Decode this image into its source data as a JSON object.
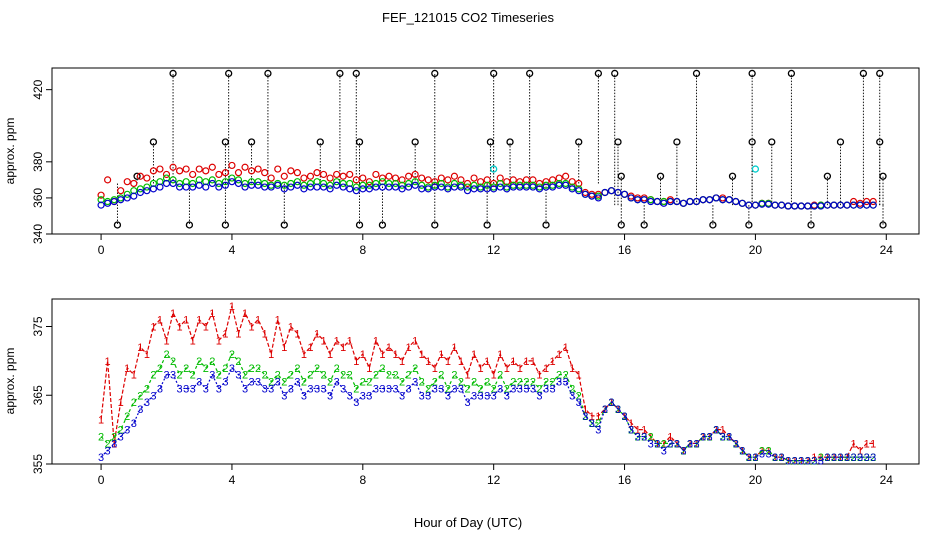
{
  "title": "FEF_121015  CO2 Timeseries",
  "xlabel": "Hour of Day (UTC)",
  "colors": {
    "series1": "#dd0000",
    "series2": "#00bb00",
    "series3": "#0000cc",
    "outlier": "#000000",
    "cyan": "#00cccc"
  },
  "chart_data": [
    {
      "type": "scatter",
      "ylabel": "approx. ppm",
      "xlim": [
        -1.5,
        25
      ],
      "ylim": [
        340,
        432
      ],
      "xticks": [
        0,
        4,
        8,
        12,
        16,
        20,
        24
      ],
      "yticks": [
        340,
        360,
        380,
        420
      ],
      "outlier_spikes": [
        {
          "x": 2.2,
          "y": 429
        },
        {
          "x": 3.9,
          "y": 429
        },
        {
          "x": 5.1,
          "y": 429
        },
        {
          "x": 7.3,
          "y": 429
        },
        {
          "x": 7.8,
          "y": 429
        },
        {
          "x": 10.2,
          "y": 429
        },
        {
          "x": 12.0,
          "y": 429
        },
        {
          "x": 13.1,
          "y": 429
        },
        {
          "x": 15.2,
          "y": 429
        },
        {
          "x": 15.7,
          "y": 429
        },
        {
          "x": 18.2,
          "y": 429
        },
        {
          "x": 19.9,
          "y": 429
        },
        {
          "x": 21.1,
          "y": 429
        },
        {
          "x": 23.3,
          "y": 429
        },
        {
          "x": 23.8,
          "y": 429
        },
        {
          "x": 1.6,
          "y": 391
        },
        {
          "x": 3.8,
          "y": 391
        },
        {
          "x": 4.6,
          "y": 391
        },
        {
          "x": 6.7,
          "y": 391
        },
        {
          "x": 7.9,
          "y": 391
        },
        {
          "x": 9.6,
          "y": 391
        },
        {
          "x": 11.9,
          "y": 391
        },
        {
          "x": 12.5,
          "y": 391
        },
        {
          "x": 14.6,
          "y": 391
        },
        {
          "x": 15.8,
          "y": 391
        },
        {
          "x": 17.6,
          "y": 391
        },
        {
          "x": 19.9,
          "y": 391
        },
        {
          "x": 20.5,
          "y": 391
        },
        {
          "x": 22.6,
          "y": 391
        },
        {
          "x": 23.8,
          "y": 391
        },
        {
          "x": 0.5,
          "y": 345
        },
        {
          "x": 2.7,
          "y": 345
        },
        {
          "x": 3.8,
          "y": 345
        },
        {
          "x": 5.6,
          "y": 345
        },
        {
          "x": 7.9,
          "y": 345
        },
        {
          "x": 8.6,
          "y": 345
        },
        {
          "x": 10.2,
          "y": 345
        },
        {
          "x": 11.8,
          "y": 345
        },
        {
          "x": 13.6,
          "y": 345
        },
        {
          "x": 15.9,
          "y": 345
        },
        {
          "x": 16.6,
          "y": 345
        },
        {
          "x": 18.7,
          "y": 345
        },
        {
          "x": 19.8,
          "y": 345
        },
        {
          "x": 21.7,
          "y": 345
        },
        {
          "x": 23.9,
          "y": 345
        },
        {
          "x": 1.1,
          "y": 372
        },
        {
          "x": 15.9,
          "y": 372
        },
        {
          "x": 17.1,
          "y": 372
        },
        {
          "x": 19.3,
          "y": 372
        },
        {
          "x": 22.2,
          "y": 372
        },
        {
          "x": 23.9,
          "y": 372
        }
      ],
      "cyan_points": [
        {
          "x": 12.0,
          "y": 376
        },
        {
          "x": 20.0,
          "y": 376
        }
      ]
    },
    {
      "type": "line",
      "ylabel": "approx. ppm",
      "xlim": [
        -1.5,
        25
      ],
      "ylim": [
        355,
        379
      ],
      "xticks": [
        0,
        4,
        8,
        12,
        16,
        20,
        24
      ],
      "yticks": [
        355,
        365,
        375
      ],
      "series": [
        {
          "marker": "1",
          "x": [
            0.0,
            0.2,
            0.4,
            0.6,
            0.8,
            1.0,
            1.2,
            1.4,
            1.6,
            1.8,
            2.0,
            2.2,
            2.4,
            2.6,
            2.8,
            3.0,
            3.2,
            3.4,
            3.6,
            3.8,
            4.0,
            4.2,
            4.4,
            4.6,
            4.8,
            5.0,
            5.2,
            5.4,
            5.6,
            5.8,
            6.0,
            6.2,
            6.4,
            6.6,
            6.8,
            7.0,
            7.2,
            7.4,
            7.6,
            7.8,
            8.0,
            8.2,
            8.4,
            8.6,
            8.8,
            9.0,
            9.2,
            9.4,
            9.6,
            9.8,
            10.0,
            10.2,
            10.4,
            10.6,
            10.8,
            11.0,
            11.2,
            11.4,
            11.6,
            11.8,
            12.0,
            12.2,
            12.4,
            12.6,
            12.8,
            13.0,
            13.2,
            13.4,
            13.6,
            13.8,
            14.0,
            14.2,
            14.4,
            14.6,
            14.8,
            15.0,
            15.2,
            15.4,
            15.6,
            15.8,
            16.0,
            16.2,
            16.4,
            16.6,
            16.8,
            17.0,
            17.2,
            17.4,
            17.6,
            17.8,
            18.0,
            18.2,
            18.4,
            18.6,
            18.8,
            19.0,
            19.2,
            19.4,
            19.6,
            19.8,
            20.0,
            20.2,
            20.4,
            20.6,
            20.8,
            21.0,
            21.2,
            21.4,
            21.6,
            21.8,
            22.0,
            22.2,
            22.4,
            22.6,
            22.8,
            23.0,
            23.2,
            23.4,
            23.6
          ],
          "values": [
            361.5,
            370,
            358,
            364,
            369,
            368,
            372,
            371,
            375,
            376,
            373,
            377,
            375,
            376,
            373,
            376,
            375,
            377,
            373,
            374,
            378,
            374,
            377,
            375,
            376,
            374,
            371,
            376,
            372,
            375,
            374,
            371,
            372,
            374,
            373,
            371,
            373,
            372,
            373,
            370,
            371,
            369,
            373,
            371,
            372,
            371,
            370,
            372,
            373,
            371,
            370,
            369,
            371,
            370,
            372,
            370,
            368,
            371,
            369,
            370,
            368,
            371,
            369,
            370,
            369,
            370,
            370,
            368,
            369,
            370,
            371,
            372,
            369,
            368,
            363,
            362,
            362,
            363,
            364,
            363,
            362,
            361,
            360,
            360,
            359,
            358,
            358,
            359,
            358,
            357,
            358,
            358,
            359,
            359,
            360,
            360,
            359,
            358,
            357,
            356,
            356,
            357,
            357,
            356,
            356,
            355.5,
            355.5,
            355.5,
            355.5,
            356,
            356,
            356,
            356,
            356,
            356,
            358,
            357,
            358,
            358
          ]
        },
        {
          "marker": "2",
          "x": [
            0.0,
            0.2,
            0.4,
            0.6,
            0.8,
            1.0,
            1.2,
            1.4,
            1.6,
            1.8,
            2.0,
            2.2,
            2.4,
            2.6,
            2.8,
            3.0,
            3.2,
            3.4,
            3.6,
            3.8,
            4.0,
            4.2,
            4.4,
            4.6,
            4.8,
            5.0,
            5.2,
            5.4,
            5.6,
            5.8,
            6.0,
            6.2,
            6.4,
            6.6,
            6.8,
            7.0,
            7.2,
            7.4,
            7.6,
            7.8,
            8.0,
            8.2,
            8.4,
            8.6,
            8.8,
            9.0,
            9.2,
            9.4,
            9.6,
            9.8,
            10.0,
            10.2,
            10.4,
            10.6,
            10.8,
            11.0,
            11.2,
            11.4,
            11.6,
            11.8,
            12.0,
            12.2,
            12.4,
            12.6,
            12.8,
            13.0,
            13.2,
            13.4,
            13.6,
            13.8,
            14.0,
            14.2,
            14.4,
            14.6,
            14.8,
            15.0,
            15.2,
            15.4,
            15.6,
            15.8,
            16.0,
            16.2,
            16.4,
            16.6,
            16.8,
            17.0,
            17.2,
            17.4,
            17.6,
            17.8,
            18.0,
            18.2,
            18.4,
            18.6,
            18.8,
            19.0,
            19.2,
            19.4,
            19.6,
            19.8,
            20.0,
            20.2,
            20.4,
            20.6,
            20.8,
            21.0,
            21.2,
            21.4,
            21.6,
            21.8,
            22.0,
            22.2,
            22.4,
            22.6,
            22.8,
            23.0,
            23.2,
            23.4,
            23.6
          ],
          "values": [
            359,
            358,
            359,
            360,
            362,
            364,
            365,
            366,
            368,
            369,
            371,
            370,
            368,
            369,
            368,
            370,
            369,
            370,
            368,
            369,
            371,
            370,
            368,
            369,
            369,
            368,
            367,
            368,
            367,
            368,
            369,
            367,
            368,
            369,
            368,
            367,
            369,
            368,
            368,
            366,
            367,
            367,
            368,
            369,
            368,
            368,
            367,
            368,
            369,
            367,
            366,
            367,
            368,
            366,
            368,
            367,
            366,
            367,
            366,
            367,
            366,
            368,
            366,
            367,
            367,
            367,
            367,
            366,
            367,
            367,
            368,
            368,
            366,
            365,
            362,
            361,
            361,
            363,
            364,
            363,
            362,
            360,
            359,
            359,
            359,
            358,
            358,
            358,
            358,
            357,
            358,
            358,
            359,
            359,
            360,
            359,
            359,
            358,
            357,
            356,
            356,
            357,
            357,
            356,
            356,
            355.5,
            355.5,
            355.5,
            355.5,
            355.5,
            356,
            356,
            356,
            356,
            356,
            356,
            356,
            356,
            356
          ]
        },
        {
          "marker": "3",
          "x": [
            0.0,
            0.2,
            0.4,
            0.6,
            0.8,
            1.0,
            1.2,
            1.4,
            1.6,
            1.8,
            2.0,
            2.2,
            2.4,
            2.6,
            2.8,
            3.0,
            3.2,
            3.4,
            3.6,
            3.8,
            4.0,
            4.2,
            4.4,
            4.6,
            4.8,
            5.0,
            5.2,
            5.4,
            5.6,
            5.8,
            6.0,
            6.2,
            6.4,
            6.6,
            6.8,
            7.0,
            7.2,
            7.4,
            7.6,
            7.8,
            8.0,
            8.2,
            8.4,
            8.6,
            8.8,
            9.0,
            9.2,
            9.4,
            9.6,
            9.8,
            10.0,
            10.2,
            10.4,
            10.6,
            10.8,
            11.0,
            11.2,
            11.4,
            11.6,
            11.8,
            12.0,
            12.2,
            12.4,
            12.6,
            12.8,
            13.0,
            13.2,
            13.4,
            13.6,
            13.8,
            14.0,
            14.2,
            14.4,
            14.6,
            14.8,
            15.0,
            15.2,
            15.4,
            15.6,
            15.8,
            16.0,
            16.2,
            16.4,
            16.6,
            16.8,
            17.0,
            17.2,
            17.4,
            17.6,
            17.8,
            18.0,
            18.2,
            18.4,
            18.6,
            18.8,
            19.0,
            19.2,
            19.4,
            19.6,
            19.8,
            20.0,
            20.2,
            20.4,
            20.6,
            20.8,
            21.0,
            21.2,
            21.4,
            21.6,
            21.8,
            22.0,
            22.2,
            22.4,
            22.6,
            22.8,
            23.0,
            23.2,
            23.4,
            23.6
          ],
          "values": [
            356,
            357,
            358,
            359,
            360,
            361,
            363,
            364,
            365,
            366,
            368,
            368,
            366,
            366,
            366,
            367,
            366,
            368,
            366,
            367,
            369,
            368,
            366,
            367,
            367,
            366,
            366,
            367,
            365,
            366,
            367,
            365,
            366,
            366,
            366,
            365,
            367,
            366,
            365,
            364,
            365,
            365,
            366,
            366,
            366,
            366,
            365,
            366,
            367,
            365,
            365,
            366,
            366,
            365,
            366,
            366,
            364,
            365,
            365,
            365,
            365,
            366,
            365,
            366,
            366,
            366,
            366,
            365,
            366,
            366,
            367,
            367,
            365,
            364,
            362,
            361,
            360,
            363,
            364,
            363,
            362,
            360,
            359,
            359,
            358,
            358,
            357,
            358,
            358,
            357,
            358,
            358,
            359,
            359,
            360,
            359,
            359,
            358,
            357,
            356,
            356,
            356.5,
            356.5,
            356,
            356,
            355.5,
            355.5,
            355.5,
            355.5,
            355.5,
            355.5,
            356,
            356,
            356,
            356,
            356,
            356,
            356,
            356
          ]
        }
      ]
    }
  ]
}
